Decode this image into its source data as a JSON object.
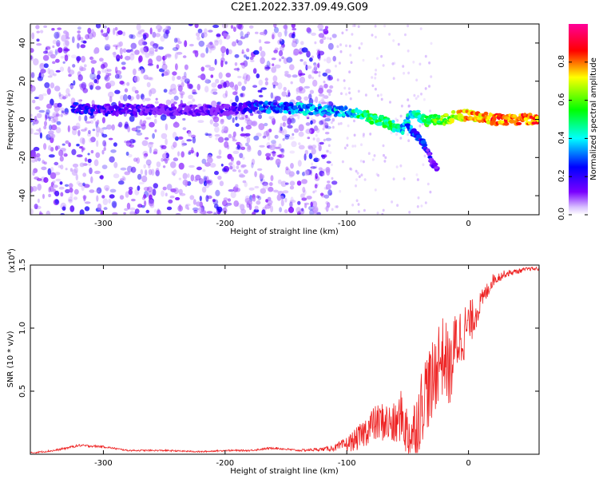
{
  "title": "C2E1.2022.337.09.49.G09",
  "chart_data": [
    {
      "type": "heatmap",
      "xlabel": "Height of straight line (km)",
      "ylabel": "Frequency (Hz)",
      "xlim": [
        -360,
        58
      ],
      "ylim": [
        -50,
        50
      ],
      "x_ticks": [
        -300,
        -200,
        -100,
        0
      ],
      "x_tick_labels": [
        "-300",
        "-200",
        "-100",
        "0"
      ],
      "y_ticks": [
        -40,
        -20,
        0,
        20,
        40
      ],
      "y_tick_labels": [
        "-40",
        "-20",
        "0",
        "20",
        "40"
      ],
      "colorbar": {
        "label": "Normalized spectral amplitude",
        "range": [
          0,
          1
        ],
        "ticks": [
          0.0,
          0.2,
          0.4,
          0.6,
          0.8
        ],
        "tick_labels": [
          "0.0",
          "0.2",
          "0.4",
          "0.6",
          "0.8"
        ],
        "colors": [
          "#ffffff",
          "#6a00ff",
          "#0000ff",
          "#00ffff",
          "#00ff00",
          "#ffff00",
          "#ff0000",
          "#ff00aa"
        ]
      },
      "main_trace": {
        "x": [
          -325,
          -300,
          -250,
          -200,
          -175,
          -150,
          -125,
          -100,
          -90,
          -80,
          -70,
          -60,
          -55,
          -45,
          -35,
          -20,
          -10,
          0,
          10,
          20,
          40,
          58
        ],
        "y": [
          6,
          5,
          5,
          5,
          7,
          6,
          5,
          4,
          3,
          1,
          -1,
          -4,
          -6,
          4,
          -1,
          0,
          2,
          2,
          1,
          0,
          0,
          0
        ],
        "amplitude": [
          0.3,
          0.25,
          0.2,
          0.2,
          0.35,
          0.4,
          0.45,
          0.45,
          0.55,
          0.6,
          0.6,
          0.55,
          0.5,
          0.5,
          0.6,
          0.7,
          0.8,
          0.85,
          0.85,
          0.9,
          0.9,
          0.9
        ]
      },
      "secondary_trace": {
        "x": [
          -50,
          -40,
          -35,
          -30,
          -25
        ],
        "y": [
          -4,
          -10,
          -15,
          -22,
          -27
        ],
        "amplitude": [
          0.4,
          0.35,
          0.3,
          0.25,
          0.2
        ]
      }
    },
    {
      "type": "line",
      "xlabel": "Height of straight line (km)",
      "ylabel": "SNR (10 * v/v)",
      "y_multiplier": "(x10",
      "y_multiplier_exp": "4",
      "y_multiplier_close": ")",
      "xlim": [
        -360,
        58
      ],
      "ylim": [
        0,
        15000
      ],
      "x_ticks": [
        -300,
        -200,
        -100,
        0
      ],
      "x_tick_labels": [
        "-300",
        "-200",
        "-100",
        "0"
      ],
      "y_ticks": [
        5000,
        10000,
        15000
      ],
      "y_tick_labels": [
        "0.5",
        "1.0",
        "1.5"
      ],
      "series": [
        {
          "color": "#ee2222",
          "x": [
            -360,
            -340,
            -320,
            -300,
            -280,
            -250,
            -220,
            -200,
            -180,
            -160,
            -140,
            -120,
            -110,
            -100,
            -90,
            -80,
            -70,
            -60,
            -55,
            -50,
            -45,
            -40,
            -35,
            -30,
            -25,
            -20,
            -15,
            -10,
            -5,
            0,
            5,
            10,
            20,
            30,
            40,
            50,
            58
          ],
          "y": [
            100,
            300,
            700,
            600,
            300,
            300,
            200,
            300,
            300,
            500,
            300,
            400,
            500,
            800,
            1300,
            2300,
            2600,
            2200,
            3200,
            1500,
            1800,
            3300,
            5200,
            5300,
            7500,
            7800,
            6500,
            9000,
            9500,
            10200,
            11000,
            12000,
            13800,
            14300,
            14500,
            14700,
            14700
          ],
          "noise": [
            60,
            80,
            100,
            80,
            60,
            60,
            60,
            60,
            70,
            90,
            80,
            150,
            250,
            600,
            1000,
            1400,
            1600,
            1800,
            2000,
            2400,
            2600,
            3000,
            3200,
            3400,
            3400,
            3200,
            3000,
            2800,
            2400,
            2000,
            1400,
            900,
            500,
            300,
            200,
            150,
            150
          ]
        }
      ]
    }
  ]
}
